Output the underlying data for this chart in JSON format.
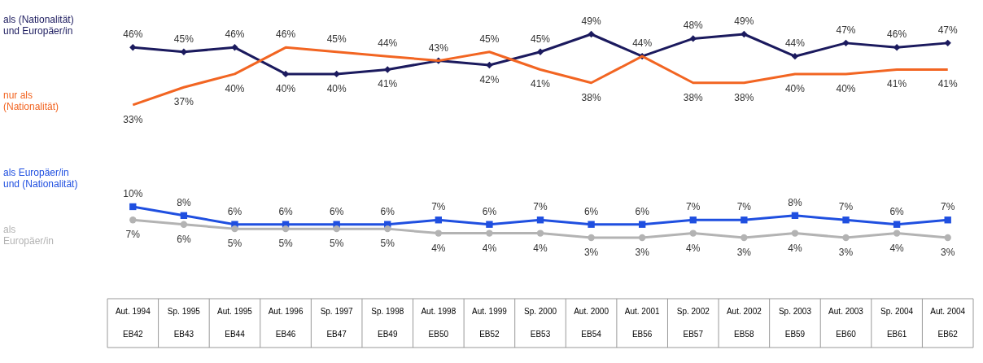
{
  "chart_data": {
    "type": "line",
    "categories": [
      "Aut. 1994\nEB42",
      "Sp. 1995\nEB43",
      "Aut. 1995\nEB44",
      "Aut. 1996\nEB46",
      "Sp. 1997\nEB47",
      "Sp. 1998\nEB49",
      "Aut. 1998\nEB50",
      "Aut. 1999\nEB52",
      "Sp. 2000\nEB53",
      "Aut. 2000\nEB54",
      "Aut. 2001\nEB56",
      "Sp. 2002\nEB57",
      "Aut. 2002\nEB58",
      "Sp. 2003\nEB59",
      "Aut. 2003\nEB60",
      "Sp. 2004\nEB61",
      "Aut. 2004\nEB62"
    ],
    "series": [
      {
        "name": "als (Nationalität)\nund Europäer/in",
        "color": "#1b1a5e",
        "marker": "diamond",
        "values": [
          46,
          45,
          46,
          40,
          40,
          41,
          43,
          42,
          45,
          49,
          44,
          48,
          49,
          44,
          47,
          46,
          47
        ],
        "value_labels": [
          "46%",
          "45%",
          "46%",
          "40%",
          "40%",
          "41%",
          "43%",
          "42%",
          "45%",
          "49%",
          "44%",
          "48%",
          "49%",
          "44%",
          "47%",
          "46%",
          "47%"
        ]
      },
      {
        "name": "nur als\n(Nationalität)",
        "color": "#f26522",
        "marker": "none",
        "values": [
          33,
          37,
          40,
          46,
          45,
          44,
          43,
          45,
          41,
          38,
          44,
          38,
          38,
          40,
          40,
          41,
          41
        ],
        "value_labels": [
          "33%",
          "37%",
          "40%",
          "46%",
          "45%",
          "44%",
          null,
          "45%",
          "41%",
          "38%",
          null,
          "38%",
          "38%",
          "40%",
          "40%",
          "41%",
          "41%"
        ]
      },
      {
        "name": "als Europäer/in\nund (Nationalität)",
        "color": "#1f4fe0",
        "marker": "square",
        "values": [
          10,
          8,
          6,
          6,
          6,
          6,
          7,
          6,
          7,
          6,
          6,
          7,
          7,
          8,
          7,
          6,
          7
        ],
        "value_labels": [
          "10%",
          "8%",
          "6%",
          "6%",
          "6%",
          "6%",
          "7%",
          "6%",
          "7%",
          "6%",
          "6%",
          "7%",
          "7%",
          "8%",
          "7%",
          "6%",
          "7%"
        ]
      },
      {
        "name": "als\nEuropäer/in",
        "color": "#b3b3b3",
        "marker": "circle",
        "values": [
          7,
          6,
          5,
          5,
          5,
          5,
          4,
          4,
          4,
          3,
          3,
          4,
          3,
          4,
          3,
          4,
          3
        ],
        "value_labels": [
          "7%",
          "6%",
          "5%",
          "5%",
          "5%",
          "5%",
          "4%",
          "4%",
          "4%",
          "3%",
          "3%",
          "4%",
          "3%",
          "4%",
          "3%",
          "4%",
          "3%"
        ]
      }
    ]
  }
}
